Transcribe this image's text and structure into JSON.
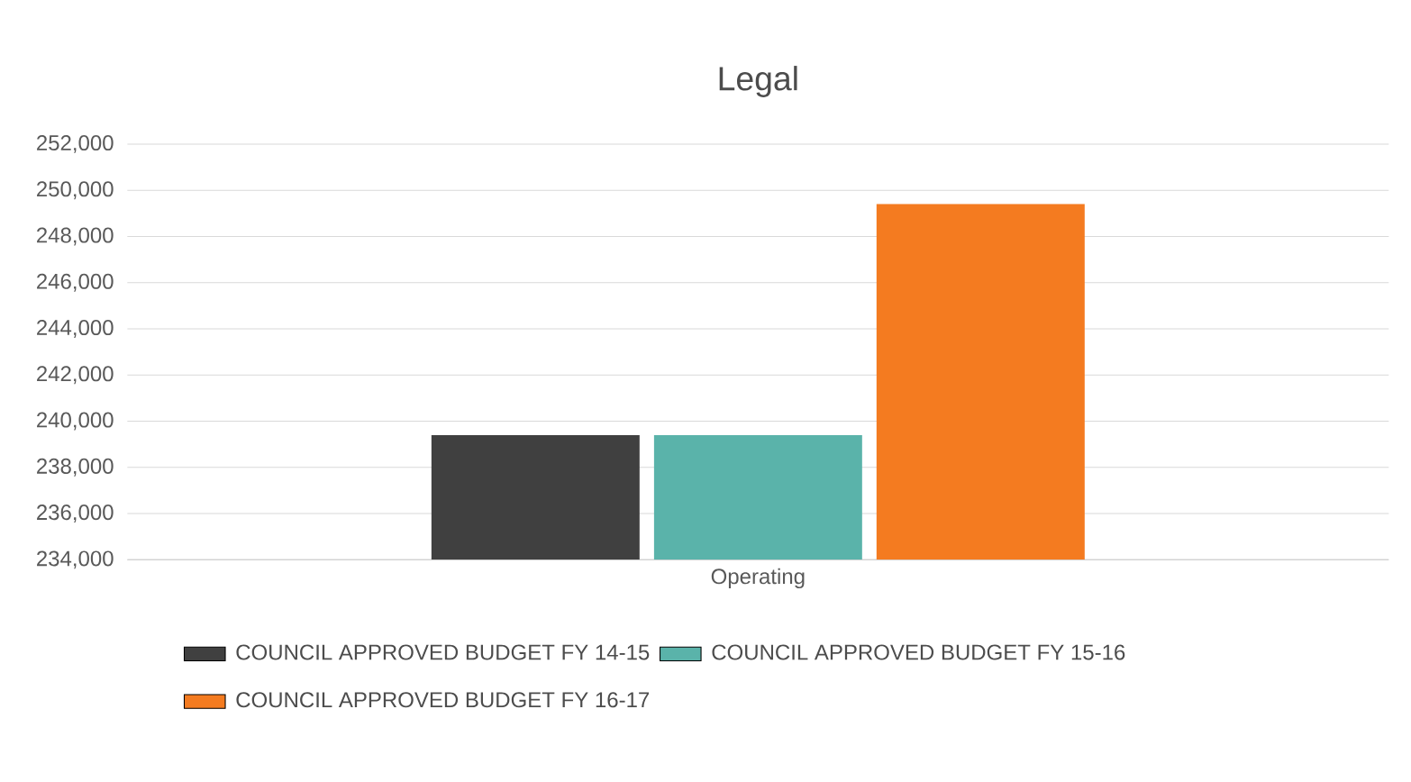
{
  "chart_data": {
    "type": "bar",
    "title": "Legal",
    "categories": [
      "Operating"
    ],
    "series": [
      {
        "name": "COUNCIL APPROVED BUDGET FY 14-15",
        "color": "#404040",
        "values": [
          239400
        ]
      },
      {
        "name": "COUNCIL APPROVED BUDGET FY 15-16",
        "color": "#5ab3aa",
        "values": [
          239400
        ]
      },
      {
        "name": "COUNCIL APPROVED BUDGET FY 16-17",
        "color": "#f47b20",
        "values": [
          249400
        ]
      }
    ],
    "ylim": [
      234000,
      252000
    ],
    "yticks": [
      {
        "value": 234000,
        "label": "234,000"
      },
      {
        "value": 236000,
        "label": "236,000"
      },
      {
        "value": 238000,
        "label": "238,000"
      },
      {
        "value": 240000,
        "label": "240,000"
      },
      {
        "value": 242000,
        "label": "242,000"
      },
      {
        "value": 244000,
        "label": "244,000"
      },
      {
        "value": 246000,
        "label": "246,000"
      },
      {
        "value": 248000,
        "label": "248,000"
      },
      {
        "value": 250000,
        "label": "250,000"
      },
      {
        "value": 252000,
        "label": "252,000"
      }
    ],
    "grid": "y",
    "legend": "bottom"
  }
}
